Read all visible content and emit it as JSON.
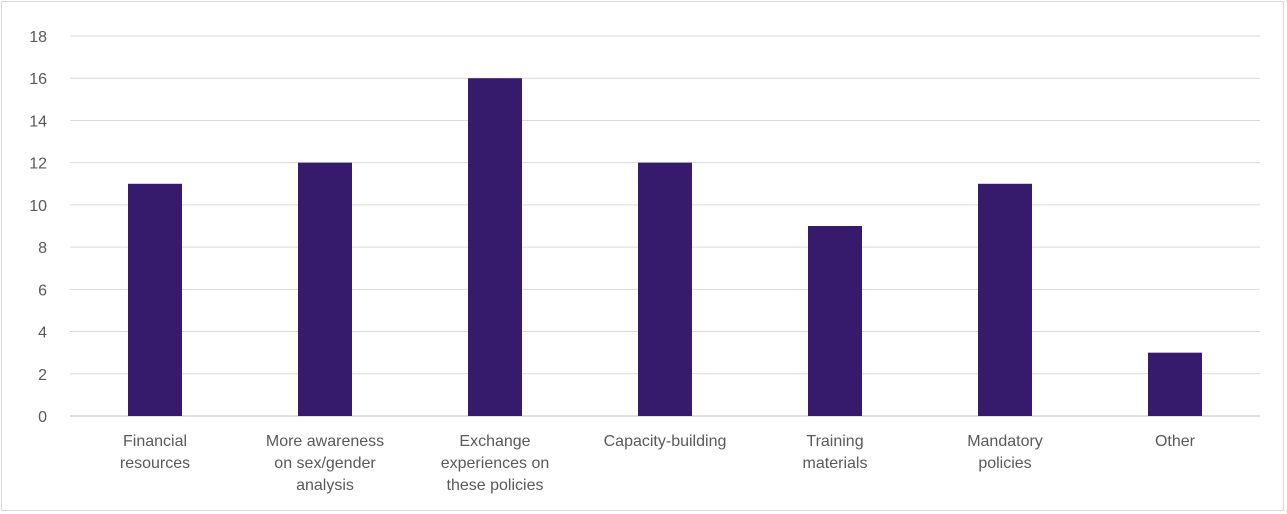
{
  "chart_data": {
    "type": "bar",
    "title": "",
    "xlabel": "",
    "ylabel": "",
    "ylim": [
      0,
      18
    ],
    "ytick_step": 2,
    "yticks": [
      "0",
      "2",
      "4",
      "6",
      "8",
      "10",
      "12",
      "14",
      "16",
      "18"
    ],
    "grid": true,
    "legend": "none",
    "bar_color": "#361a6b",
    "categories": [
      [
        "Financial",
        "resources"
      ],
      [
        "More awareness",
        "on sex/gender",
        "analysis"
      ],
      [
        "Exchange",
        "experiences on",
        "these policies"
      ],
      [
        "Capacity-building"
      ],
      [
        "Training",
        "materials"
      ],
      [
        "Mandatory",
        "policies"
      ],
      [
        "Other"
      ]
    ],
    "values": [
      11,
      12,
      16,
      12,
      9,
      11,
      3
    ]
  }
}
